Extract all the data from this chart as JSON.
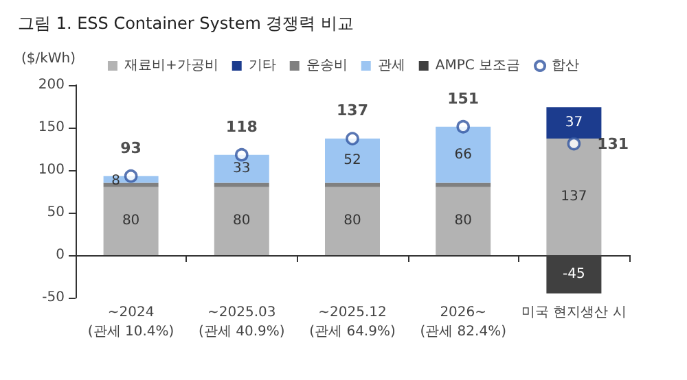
{
  "chart_data": {
    "type": "bar",
    "title": "그림 1. ESS Container System 경쟁력 비교",
    "ylabel": "($/kWh)",
    "categories": [
      "~2024\n(관세 10.4%)",
      "~2025.03\n(관세 40.9%)",
      "~2025.12\n(관세 64.9%)",
      "2026~\n(관세 82.4%)",
      "미국 현지생산 시"
    ],
    "stacked": true,
    "series": [
      {
        "name": "재료비+가공비",
        "color": "#b3b3b3",
        "values": [
          80,
          80,
          80,
          80,
          137
        ],
        "value_labels": [
          "80",
          "80",
          "80",
          "80",
          "137"
        ]
      },
      {
        "name": "기타",
        "color": "#1c3c8e",
        "values": [
          null,
          null,
          null,
          null,
          37
        ],
        "value_labels": [
          null,
          null,
          null,
          null,
          "37"
        ]
      },
      {
        "name": "운송비",
        "color": "#808080",
        "values": [
          5,
          5,
          5,
          5,
          null
        ]
      },
      {
        "name": "관세",
        "color": "#9cc5f2",
        "values": [
          8,
          33,
          52,
          66,
          null
        ],
        "value_labels": [
          "8",
          "33",
          "52",
          "66",
          null
        ]
      },
      {
        "name": "AMPC 보조금",
        "color": "#404040",
        "values": [
          null,
          null,
          null,
          null,
          -45
        ],
        "value_labels": [
          null,
          null,
          null,
          null,
          "-45"
        ]
      },
      {
        "name": "합산",
        "type": "scatter",
        "color": "#2f54a0",
        "marker": "circle",
        "x": [
          "~2024\n(관세 10.4%)",
          "~2025.03\n(관세 40.9%)",
          "~2025.12\n(관세 64.9%)",
          "2026~\n(관세 82.4%)",
          "미국 현지생산 시"
        ],
        "values": [
          93,
          118,
          137,
          151,
          131
        ],
        "value_labels": [
          "93",
          "118",
          "137",
          "151",
          "131"
        ]
      }
    ],
    "ylim": [
      -50,
      200
    ],
    "yticks": [
      -50,
      0,
      50,
      100,
      150,
      200
    ],
    "legend": "top"
  }
}
